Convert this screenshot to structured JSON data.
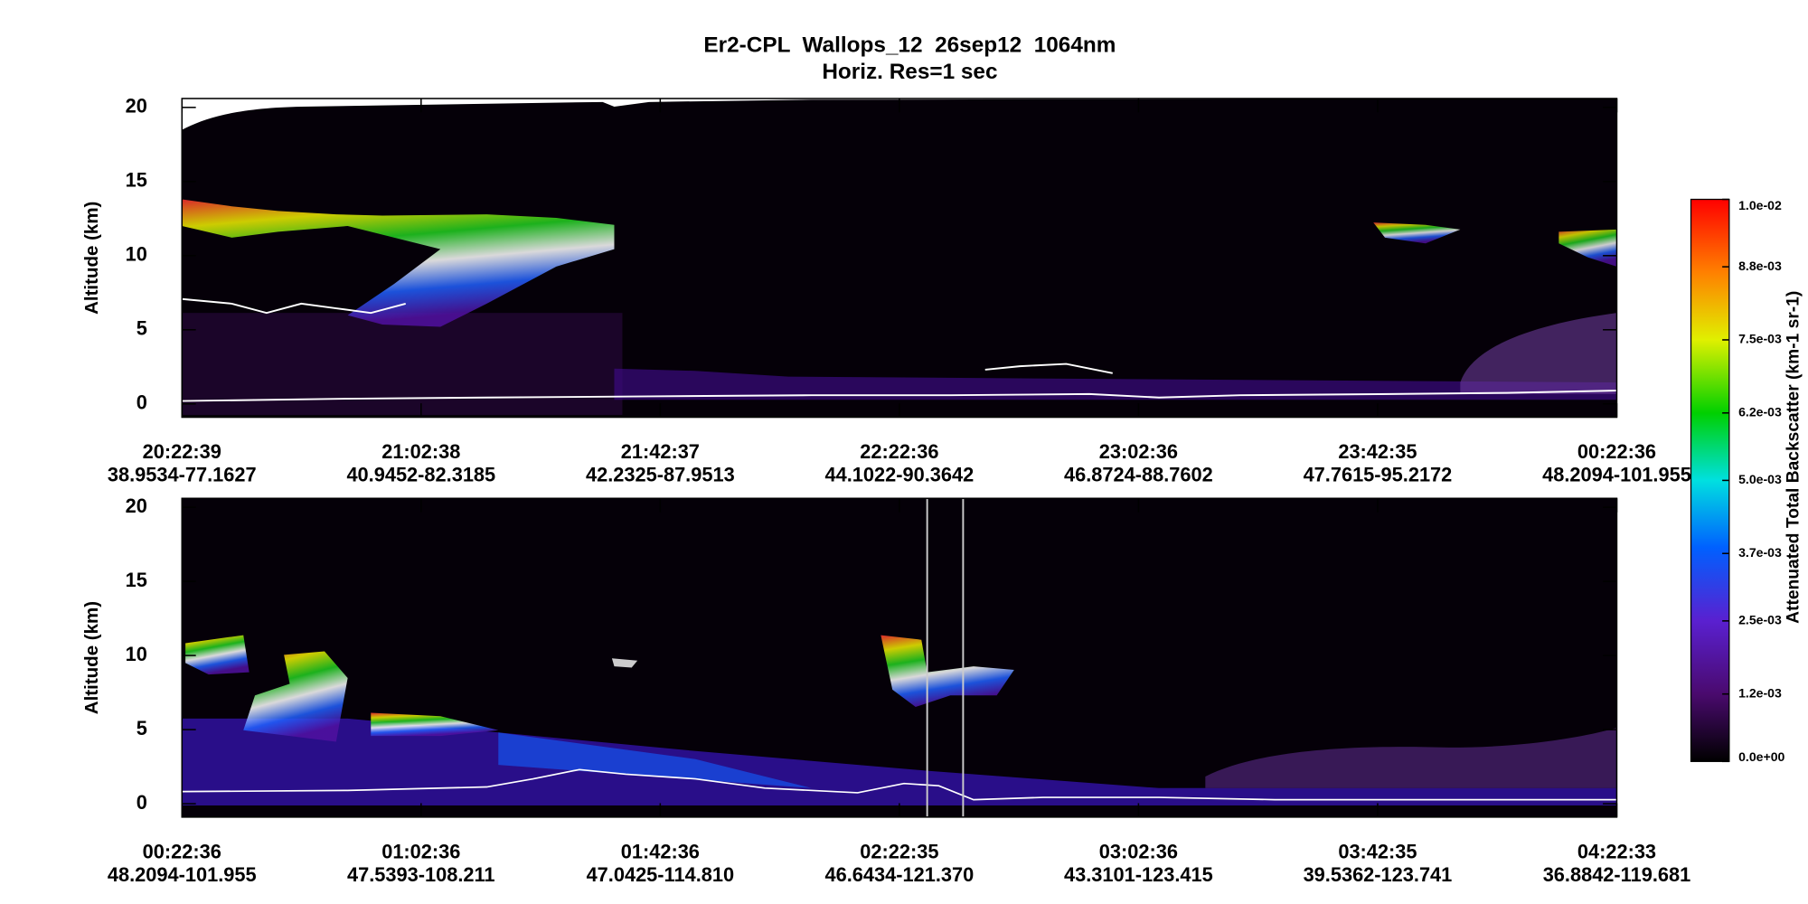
{
  "title": "Er2-CPL  Wallops_12  26sep12  1064nm",
  "subtitle": "Horiz. Res=1 sec",
  "colorbar": {
    "label": "Attenuated Total Backscatter (km-1 sr-1)",
    "lim": [
      0,
      0.01
    ],
    "ticks": [
      {
        "value": 0.01,
        "label": "1.0e-02"
      },
      {
        "value": 0.0088,
        "label": "8.8e-03"
      },
      {
        "value": 0.0075,
        "label": "7.5e-03"
      },
      {
        "value": 0.0062,
        "label": "6.2e-03"
      },
      {
        "value": 0.005,
        "label": "5.0e-03"
      },
      {
        "value": 0.0037,
        "label": "3.7e-03"
      },
      {
        "value": 0.0025,
        "label": "2.5e-03"
      },
      {
        "value": 0.0012,
        "label": "1.2e-03"
      },
      {
        "value": 0,
        "label": "0.0e+00"
      }
    ]
  },
  "chart_data": [
    {
      "type": "heatmap",
      "ylabel": "Altitude (km)",
      "ylim": [
        -0.9,
        20.6
      ],
      "yticks": [
        0,
        5,
        10,
        15,
        20
      ],
      "categories": [
        "20:22:39",
        "21:02:38",
        "21:42:37",
        "22:22:36",
        "23:02:36",
        "23:42:35",
        "00:22:36"
      ],
      "category_sublabels": [
        "38.9534-77.1627",
        "40.9452-82.3185",
        "42.2325-87.9513",
        "44.1022-90.3642",
        "46.8724-88.7602",
        "47.7615-95.2172",
        "48.2094-101.955"
      ]
    },
    {
      "type": "heatmap",
      "ylabel": "Altitude (km)",
      "ylim": [
        -0.9,
        20.6
      ],
      "yticks": [
        0,
        5,
        10,
        15,
        20
      ],
      "categories": [
        "00:22:36",
        "01:02:36",
        "01:42:36",
        "02:22:35",
        "03:02:36",
        "03:42:35",
        "04:22:33"
      ],
      "category_sublabels": [
        "48.2094-101.955",
        "47.5393-108.211",
        "47.0425-114.810",
        "46.6434-121.370",
        "43.3101-123.415",
        "39.5362-123.741",
        "36.8842-119.681"
      ]
    }
  ]
}
